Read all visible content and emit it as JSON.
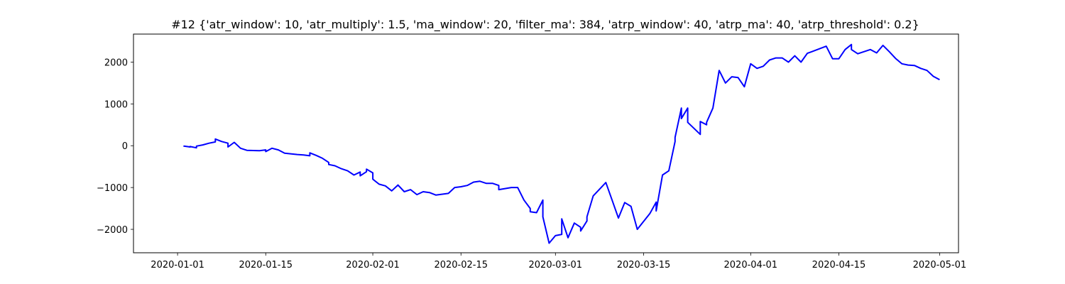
{
  "chart_data": {
    "type": "line",
    "title": "#12 {'atr_window': 10, 'atr_multiply': 1.5, 'ma_window': 20, 'filter_ma': 384, 'atrp_window': 40, 'atrp_ma': 40, 'atrp_threshold': 0.2}",
    "xlabel": "",
    "ylabel": "",
    "x_axis": "date",
    "xlim": [
      "2019-12-25",
      "2020-05-04"
    ],
    "ylim": [
      -2560,
      2670
    ],
    "x_tick_labels": [
      "2020-01-01",
      "2020-01-15",
      "2020-02-01",
      "2020-02-15",
      "2020-03-01",
      "2020-03-15",
      "2020-04-01",
      "2020-04-15",
      "2020-05-01"
    ],
    "y_ticks": [
      -2000,
      -1000,
      0,
      1000,
      2000
    ],
    "y_tick_labels": [
      "−2000",
      "−1000",
      "0",
      "1000",
      "2000"
    ],
    "grid": false,
    "series": [
      {
        "color": "#0000ff",
        "points": [
          [
            "2020-01-02",
            0
          ],
          [
            "2020-01-02",
            -10
          ],
          [
            "2020-01-03",
            -30
          ],
          [
            "2020-01-03",
            -20
          ],
          [
            "2020-01-04",
            -50
          ],
          [
            "2020-01-04",
            -10
          ],
          [
            "2020-01-05",
            20
          ],
          [
            "2020-01-06",
            60
          ],
          [
            "2020-01-07",
            90
          ],
          [
            "2020-01-07",
            160
          ],
          [
            "2020-01-08",
            100
          ],
          [
            "2020-01-09",
            60
          ],
          [
            "2020-01-09",
            -30
          ],
          [
            "2020-01-10",
            80
          ],
          [
            "2020-01-11",
            -60
          ],
          [
            "2020-01-12",
            -110
          ],
          [
            "2020-01-14",
            -120
          ],
          [
            "2020-01-15",
            -100
          ],
          [
            "2020-01-15",
            -140
          ],
          [
            "2020-01-16",
            -60
          ],
          [
            "2020-01-17",
            -100
          ],
          [
            "2020-01-18",
            -180
          ],
          [
            "2020-01-20",
            -210
          ],
          [
            "2020-01-21",
            -220
          ],
          [
            "2020-01-22",
            -240
          ],
          [
            "2020-01-22",
            -170
          ],
          [
            "2020-01-23",
            -230
          ],
          [
            "2020-01-24",
            -300
          ],
          [
            "2020-01-25",
            -400
          ],
          [
            "2020-01-25",
            -450
          ],
          [
            "2020-01-26",
            -480
          ],
          [
            "2020-01-27",
            -550
          ],
          [
            "2020-01-28",
            -600
          ],
          [
            "2020-01-29",
            -700
          ],
          [
            "2020-01-30",
            -630
          ],
          [
            "2020-01-30",
            -720
          ],
          [
            "2020-01-31",
            -620
          ],
          [
            "2020-01-31",
            -560
          ],
          [
            "2020-02-01",
            -650
          ],
          [
            "2020-02-01",
            -800
          ],
          [
            "2020-02-02",
            -920
          ],
          [
            "2020-02-03",
            -960
          ],
          [
            "2020-02-04",
            -1080
          ],
          [
            "2020-02-05",
            -940
          ],
          [
            "2020-02-06",
            -1100
          ],
          [
            "2020-02-07",
            -1050
          ],
          [
            "2020-02-08",
            -1170
          ],
          [
            "2020-02-09",
            -1100
          ],
          [
            "2020-02-10",
            -1120
          ],
          [
            "2020-02-11",
            -1180
          ],
          [
            "2020-02-13",
            -1140
          ],
          [
            "2020-02-14",
            -1000
          ],
          [
            "2020-02-15",
            -980
          ],
          [
            "2020-02-16",
            -950
          ],
          [
            "2020-02-17",
            -870
          ],
          [
            "2020-02-18",
            -850
          ],
          [
            "2020-02-19",
            -900
          ],
          [
            "2020-02-20",
            -900
          ],
          [
            "2020-02-21",
            -950
          ],
          [
            "2020-02-21",
            -1050
          ],
          [
            "2020-02-23",
            -1000
          ],
          [
            "2020-02-24",
            -1000
          ],
          [
            "2020-02-25",
            -1300
          ],
          [
            "2020-02-26",
            -1500
          ],
          [
            "2020-02-26",
            -1580
          ],
          [
            "2020-02-27",
            -1600
          ],
          [
            "2020-02-28",
            -1300
          ],
          [
            "2020-02-28",
            -1700
          ],
          [
            "2020-02-29",
            -2330
          ],
          [
            "2020-03-01",
            -2150
          ],
          [
            "2020-03-02",
            -2120
          ],
          [
            "2020-03-02",
            -1750
          ],
          [
            "2020-03-03",
            -2200
          ],
          [
            "2020-03-04",
            -1850
          ],
          [
            "2020-03-05",
            -1950
          ],
          [
            "2020-03-05",
            -2040
          ],
          [
            "2020-03-06",
            -1800
          ],
          [
            "2020-03-06",
            -1700
          ],
          [
            "2020-03-07",
            -1200
          ],
          [
            "2020-03-09",
            -880
          ],
          [
            "2020-03-10",
            -1300
          ],
          [
            "2020-03-11",
            -1730
          ],
          [
            "2020-03-12",
            -1360
          ],
          [
            "2020-03-13",
            -1450
          ],
          [
            "2020-03-14",
            -2000
          ],
          [
            "2020-03-16",
            -1620
          ],
          [
            "2020-03-17",
            -1350
          ],
          [
            "2020-03-17",
            -1560
          ],
          [
            "2020-03-18",
            -700
          ],
          [
            "2020-03-19",
            -600
          ],
          [
            "2020-03-20",
            100
          ],
          [
            "2020-03-20",
            200
          ],
          [
            "2020-03-21",
            900
          ],
          [
            "2020-03-21",
            650
          ],
          [
            "2020-03-22",
            900
          ],
          [
            "2020-03-22",
            560
          ],
          [
            "2020-03-24",
            270
          ],
          [
            "2020-03-24",
            580
          ],
          [
            "2020-03-25",
            500
          ],
          [
            "2020-03-25",
            560
          ],
          [
            "2020-03-26",
            900
          ],
          [
            "2020-03-27",
            1800
          ],
          [
            "2020-03-28",
            1500
          ],
          [
            "2020-03-29",
            1650
          ],
          [
            "2020-03-30",
            1630
          ],
          [
            "2020-03-31",
            1410
          ],
          [
            "2020-04-01",
            1960
          ],
          [
            "2020-04-02",
            1850
          ],
          [
            "2020-04-03",
            1900
          ],
          [
            "2020-04-04",
            2050
          ],
          [
            "2020-04-05",
            2100
          ],
          [
            "2020-04-06",
            2100
          ],
          [
            "2020-04-07",
            2000
          ],
          [
            "2020-04-08",
            2150
          ],
          [
            "2020-04-09",
            2000
          ],
          [
            "2020-04-10",
            2210
          ],
          [
            "2020-04-13",
            2380
          ],
          [
            "2020-04-14",
            2080
          ],
          [
            "2020-04-15",
            2080
          ],
          [
            "2020-04-16",
            2300
          ],
          [
            "2020-04-17",
            2420
          ],
          [
            "2020-04-17",
            2300
          ],
          [
            "2020-04-18",
            2200
          ],
          [
            "2020-04-20",
            2300
          ],
          [
            "2020-04-21",
            2220
          ],
          [
            "2020-04-22",
            2400
          ],
          [
            "2020-04-23",
            2250
          ],
          [
            "2020-04-24",
            2090
          ],
          [
            "2020-04-25",
            1960
          ],
          [
            "2020-04-26",
            1930
          ],
          [
            "2020-04-27",
            1920
          ],
          [
            "2020-04-28",
            1850
          ],
          [
            "2020-04-29",
            1800
          ],
          [
            "2020-04-30",
            1660
          ],
          [
            "2020-05-01",
            1580
          ]
        ]
      }
    ]
  }
}
